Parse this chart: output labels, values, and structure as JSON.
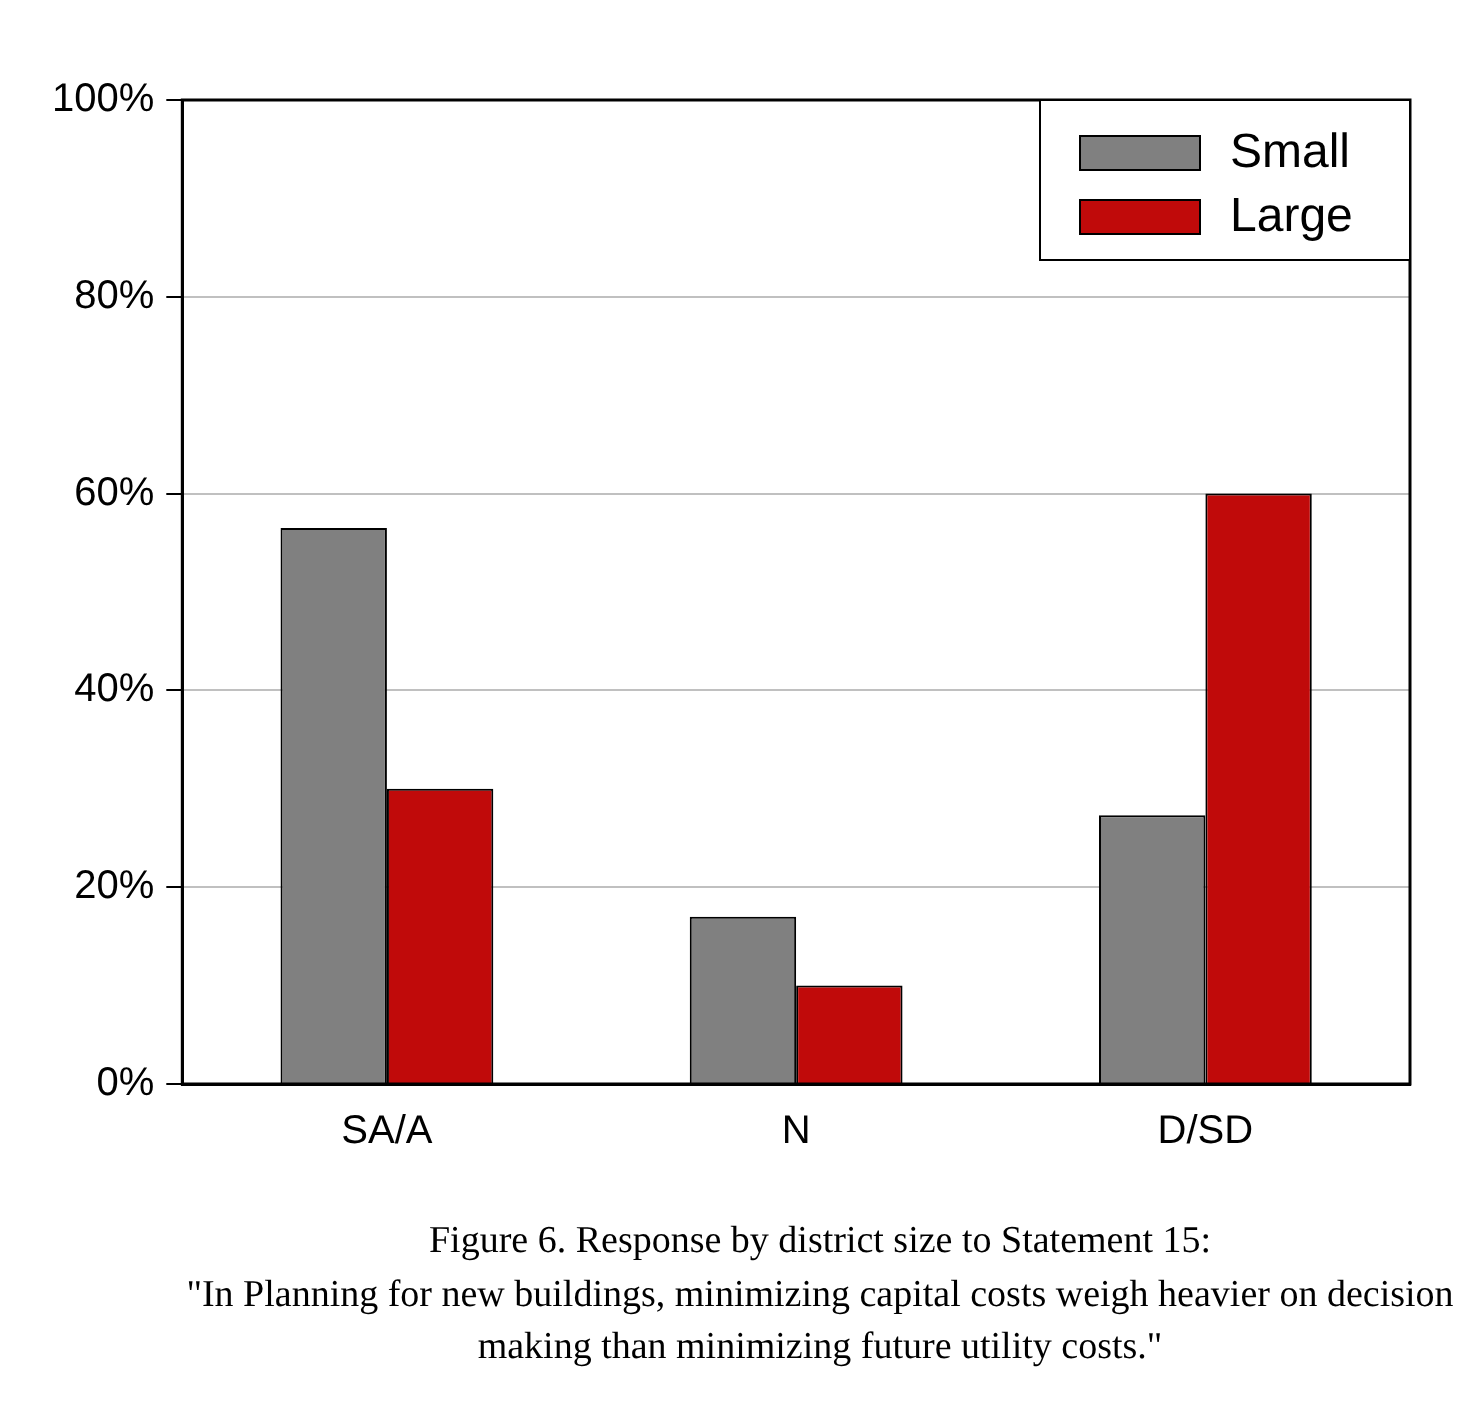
{
  "chart_data": {
    "type": "bar",
    "categories": [
      "SA/A",
      "N",
      "D/SD"
    ],
    "series": [
      {
        "name": "Small",
        "color": "#808080",
        "values": [
          56.5,
          17,
          27.3
        ]
      },
      {
        "name": "Large",
        "color": "#c00a0a",
        "values": [
          30,
          10,
          60
        ]
      }
    ],
    "ylim": [
      0,
      100
    ],
    "yticks": [
      {
        "value": 0,
        "label": "0%"
      },
      {
        "value": 20,
        "label": "20%"
      },
      {
        "value": 40,
        "label": "40%"
      },
      {
        "value": 60,
        "label": "60%"
      },
      {
        "value": 80,
        "label": "80%"
      },
      {
        "value": 100,
        "label": "100%"
      }
    ],
    "grid": "y",
    "legend": "top right",
    "annotations": [
      "Figure 6.      Response by district size to Statement 15:",
      "\"In Planning for new buildings, minimizing capital costs weigh heavier on decision making than minimizing future utility costs.\""
    ]
  }
}
